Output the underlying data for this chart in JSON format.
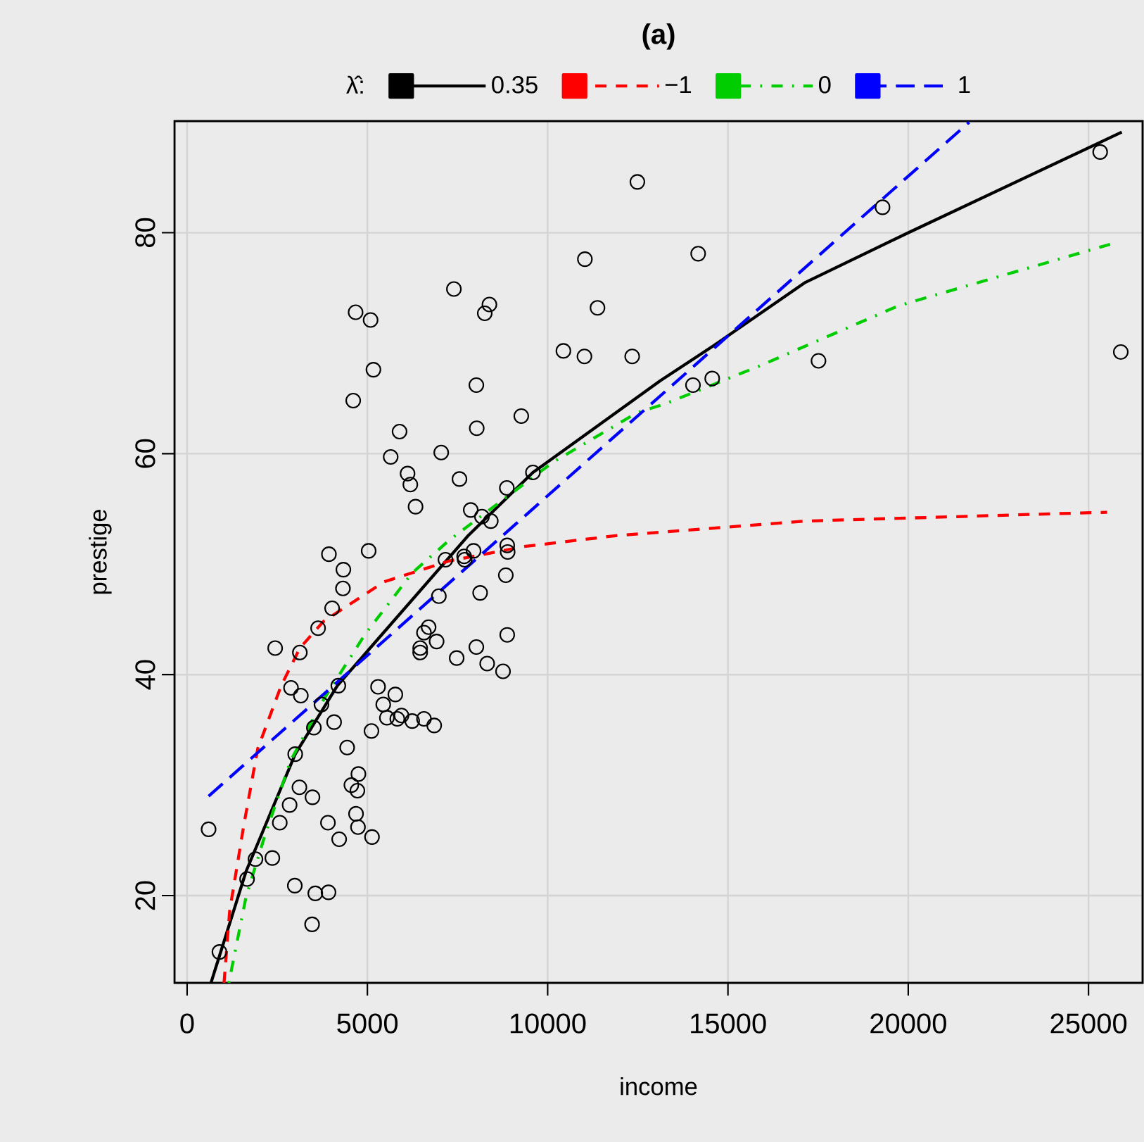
{
  "chart_data": {
    "type": "scatter",
    "title": "(a)",
    "xlabel": "income",
    "ylabel": "prestige",
    "legend_title": "λ̂:",
    "xlim": [
      -350,
      26500
    ],
    "ylim": [
      12.1,
      90.1
    ],
    "xticks": [
      0,
      5000,
      10000,
      15000,
      20000,
      25000
    ],
    "yticks": [
      20,
      40,
      60,
      80
    ],
    "grid": true,
    "legend": "top",
    "series": [
      {
        "color": "#000000",
        "marker": "circle",
        "x": [
          596,
          896,
          1663,
          1896,
          2364,
          2987,
          3555,
          3921,
          3466,
          2570,
          2843,
          3115,
          3477,
          3906,
          4217,
          4685,
          4739,
          5128,
          4556,
          4751,
          4723,
          4439,
          2998,
          3516,
          4077,
          3727,
          4194,
          2882,
          3154,
          2442,
          3127,
          3633,
          4022,
          4322,
          4334,
          3933,
          5035,
          5296,
          5775,
          5440,
          5541,
          5946,
          5829,
          6242,
          6569,
          6853,
          5113,
          6464,
          6464,
          6569,
          6698,
          6920,
          7476,
          8022,
          8322,
          8762,
          8878,
          6982,
          8127,
          8839,
          7165,
          7698,
          7944,
          8878,
          8890,
          12488,
          11032,
          11382,
          10436,
          11020,
          12344,
          7399,
          8384,
          8255,
          4673,
          5089,
          5167,
          4607,
          8022,
          9268,
          5892,
          7048,
          5646,
          8033,
          6114,
          6191,
          6336,
          7554,
          7866,
          9591,
          8867,
          8177,
          8423,
          7683,
          14174,
          14030,
          14564,
          17511,
          19287,
          25323,
          25895
        ],
        "values": [
          26.0,
          14.9,
          21.5,
          23.3,
          23.4,
          20.9,
          20.2,
          20.3,
          17.4,
          26.6,
          28.2,
          29.8,
          28.9,
          26.6,
          25.1,
          27.4,
          26.2,
          25.3,
          30.0,
          31.0,
          29.5,
          33.4,
          32.8,
          35.2,
          35.7,
          37.3,
          39.0,
          38.8,
          38.1,
          42.4,
          42.0,
          44.2,
          46.0,
          47.8,
          49.5,
          50.9,
          51.2,
          38.9,
          38.2,
          37.3,
          36.1,
          36.3,
          36.0,
          35.8,
          36.0,
          35.4,
          34.9,
          42.4,
          42.0,
          43.8,
          44.3,
          43.0,
          41.5,
          42.5,
          41.0,
          40.3,
          43.6,
          47.1,
          47.4,
          49.0,
          50.4,
          50.4,
          51.2,
          51.7,
          51.1,
          84.6,
          77.6,
          73.2,
          69.3,
          68.8,
          68.8,
          74.9,
          73.5,
          72.7,
          72.8,
          72.1,
          67.6,
          64.8,
          66.2,
          63.4,
          62.0,
          60.1,
          59.7,
          62.3,
          58.2,
          57.2,
          55.2,
          57.7,
          54.9,
          58.3,
          56.9,
          54.3,
          53.9,
          50.7,
          78.1,
          66.2,
          66.8,
          68.4,
          82.3,
          87.3,
          69.2
        ]
      },
      {
        "type": "line",
        "name": "0.35",
        "color": "#000000",
        "line_style": "solid",
        "x": [
          662,
          1636,
          2998,
          4167,
          5074,
          7800,
          9591,
          13123,
          14615,
          17146,
          20003,
          25922
        ],
        "values": [
          12.1,
          22.2,
          32.8,
          39.0,
          42.4,
          52.6,
          58.3,
          66.6,
          69.8,
          75.5,
          80.0,
          89.1
        ]
      },
      {
        "type": "line",
        "name": "−1",
        "color": "#ff0000",
        "line_style": "dashed",
        "x": [
          1024,
          1180,
          1569,
          1959,
          2609,
          3127,
          3777,
          5463,
          7282,
          9357,
          11955,
          17146,
          25517
        ],
        "values": [
          12.1,
          18.6,
          26.3,
          33.3,
          39.0,
          42.4,
          44.8,
          48.4,
          50.3,
          51.6,
          52.6,
          53.9,
          54.7
        ]
      },
      {
        "type": "line",
        "name": "0",
        "color": "#00cd00",
        "line_style": "dashdot",
        "x": [
          1157,
          1636,
          2153,
          2870,
          3777,
          4946,
          6242,
          7282,
          10136,
          12473,
          13252,
          15849,
          19742,
          25650
        ],
        "values": [
          12.1,
          19.9,
          25.4,
          32.2,
          37.7,
          43.7,
          49.2,
          52.2,
          59.2,
          63.7,
          64.5,
          67.9,
          73.4,
          79.0
        ]
      },
      {
        "type": "line",
        "name": "1",
        "color": "#0000ff",
        "line_style": "longdash",
        "x": [
          596,
          21690
        ],
        "values": [
          29.0,
          90.0
        ]
      }
    ]
  }
}
